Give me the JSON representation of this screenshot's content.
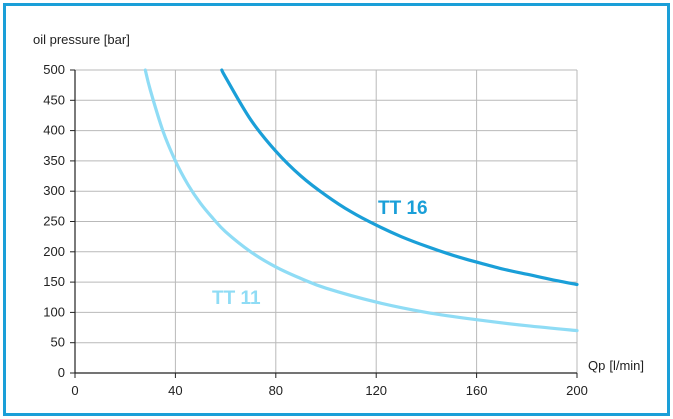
{
  "chart_data": {
    "type": "line",
    "title": "",
    "ylabel": "oil pressure [bar]",
    "xlabel_main": "Qp",
    "xlabel_unit": "[l/min]",
    "xlim": [
      0,
      200
    ],
    "ylim": [
      0,
      500
    ],
    "x_ticks": [
      0,
      40,
      80,
      120,
      160,
      200
    ],
    "y_ticks": [
      0,
      50,
      100,
      150,
      200,
      250,
      300,
      350,
      400,
      450,
      500
    ],
    "grid": true,
    "legend": "labels on curves",
    "series": [
      {
        "name": "TT 11",
        "color": "#8fdcf5",
        "x": [
          28,
          30,
          35,
          40,
          45,
          50,
          55,
          60,
          70,
          80,
          90,
          100,
          120,
          140,
          160,
          180,
          200
        ],
        "y": [
          500,
          467,
          400,
          350,
          311,
          280,
          255,
          233,
          200,
          175,
          156,
          140,
          117,
          100,
          88,
          78,
          70
        ]
      },
      {
        "name": "TT 16",
        "color": "#1a9fd8",
        "x": [
          58.5,
          60,
          70,
          80,
          90,
          100,
          110,
          120,
          130,
          140,
          150,
          160,
          170,
          180,
          190,
          200
        ],
        "y": [
          500,
          488,
          418,
          366,
          325,
          293,
          266,
          244,
          225,
          209,
          195,
          183,
          172,
          163,
          154,
          146
        ]
      }
    ]
  }
}
